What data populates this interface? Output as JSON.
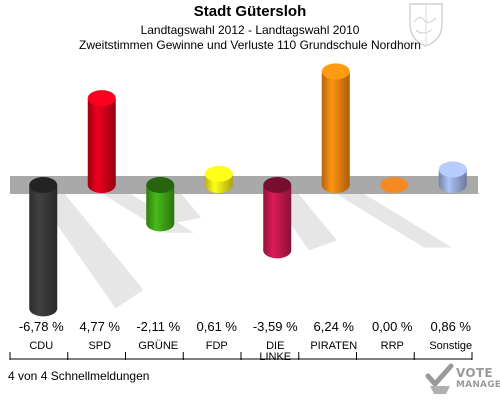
{
  "header": {
    "title": "Stadt Gütersloh",
    "subtitle1": "Landtagswahl 2012 - Landtagswahl 2010",
    "subtitle2": "Zweitstimmen Gewinne und Verluste 110 Grundschule Nordhorn"
  },
  "footer": {
    "count_text": "4 von 4 Schnellmeldungen",
    "watermark_line1": "VOTE",
    "watermark_line2": "MANAGER"
  },
  "chart_data": {
    "type": "bar",
    "categories": [
      "CDU",
      "SPD",
      "GRÜNE",
      "FDP",
      "DIE LINKE",
      "PIRATEN",
      "RRP",
      "Sonstige"
    ],
    "values": [
      -6.78,
      4.77,
      -2.11,
      0.61,
      -3.59,
      6.24,
      0.0,
      0.86
    ],
    "value_labels": [
      "-6,78 %",
      "4,77 %",
      "-2,11 %",
      "0,61 %",
      "-3,59 %",
      "6,24 %",
      "0,00 %",
      "0,86 %"
    ],
    "colors": [
      "#3a3a3a",
      "#d40019",
      "#3fa617",
      "#f5ea16",
      "#c4184e",
      "#f58410",
      "#f58a22",
      "#9aaedc"
    ],
    "title": "",
    "xlabel": "",
    "ylabel": "",
    "grid": false,
    "legend": "none"
  }
}
